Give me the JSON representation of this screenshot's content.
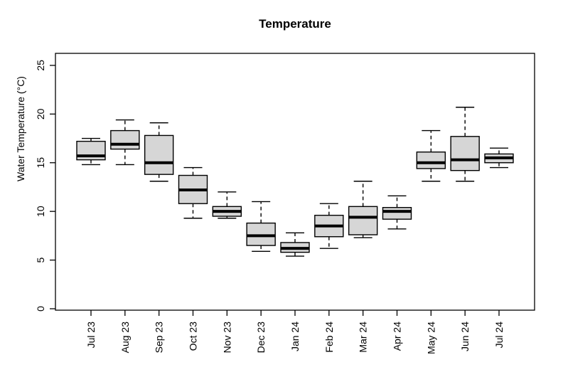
{
  "chart_data": {
    "type": "boxplot",
    "title": "Temperature",
    "xlabel": "",
    "ylabel": "Water Temperature (°C)",
    "ylim": [
      0,
      26.2
    ],
    "yticks": [
      0,
      5,
      10,
      15,
      20,
      25
    ],
    "grid": false,
    "legend": "none",
    "categories": [
      "Jul 23",
      "Aug 23",
      "Sep 23",
      "Oct 23",
      "Nov 23",
      "Dec 23",
      "Jan 24",
      "Feb 24",
      "Mar 24",
      "Apr 24",
      "May 24",
      "Jun 24",
      "Jul 24"
    ],
    "boxes": [
      {
        "label": "Jul 23",
        "min": 14.8,
        "q1": 15.3,
        "median": 15.7,
        "q3": 17.2,
        "max": 17.5
      },
      {
        "label": "Aug 23",
        "min": 14.8,
        "q1": 16.4,
        "median": 16.9,
        "q3": 18.3,
        "max": 19.4
      },
      {
        "label": "Sep 23",
        "min": 13.1,
        "q1": 13.8,
        "median": 15.0,
        "q3": 17.8,
        "max": 19.1
      },
      {
        "label": "Oct 23",
        "min": 9.3,
        "q1": 10.8,
        "median": 12.2,
        "q3": 13.7,
        "max": 14.5
      },
      {
        "label": "Nov 23",
        "min": 9.3,
        "q1": 9.5,
        "median": 10.0,
        "q3": 10.5,
        "max": 12.0
      },
      {
        "label": "Dec 23",
        "min": 5.9,
        "q1": 6.5,
        "median": 7.5,
        "q3": 8.8,
        "max": 11.0
      },
      {
        "label": "Jan 24",
        "min": 5.4,
        "q1": 5.8,
        "median": 6.2,
        "q3": 6.8,
        "max": 7.8
      },
      {
        "label": "Feb 24",
        "min": 6.2,
        "q1": 7.4,
        "median": 8.5,
        "q3": 9.6,
        "max": 10.8
      },
      {
        "label": "Mar 24",
        "min": 7.3,
        "q1": 7.6,
        "median": 9.4,
        "q3": 10.5,
        "max": 13.1
      },
      {
        "label": "Apr 24",
        "min": 8.2,
        "q1": 9.2,
        "median": 10.0,
        "q3": 10.4,
        "max": 11.6
      },
      {
        "label": "May 24",
        "min": 13.1,
        "q1": 14.4,
        "median": 15.0,
        "q3": 16.1,
        "max": 18.3
      },
      {
        "label": "Jun 24",
        "min": 13.1,
        "q1": 14.2,
        "median": 15.3,
        "q3": 17.7,
        "max": 20.7
      },
      {
        "label": "Jul 24",
        "min": 14.5,
        "q1": 15.0,
        "median": 15.5,
        "q3": 15.9,
        "max": 16.5
      }
    ],
    "colors": {
      "box_fill": "#d6d6d6",
      "box_stroke": "#000000",
      "median_stroke": "#000000",
      "axis_stroke": "#000000",
      "background": "#ffffff"
    }
  }
}
